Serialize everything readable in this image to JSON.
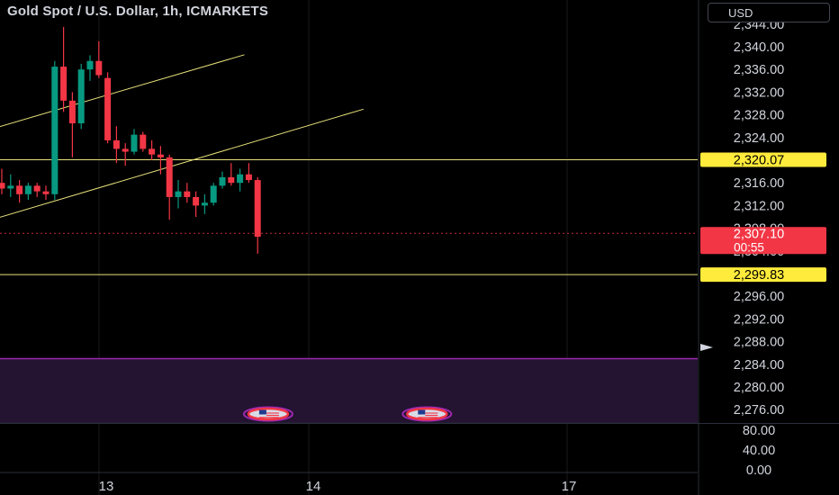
{
  "header": {
    "title": "Gold Spot / U.S. Dollar, 1h, ICMARKETS",
    "currency": "USD"
  },
  "colors": {
    "up": "#089981",
    "down": "#f23645",
    "trendline": "#e6e07a",
    "hline": "#e6e07a",
    "badge_yellow": "#ffeb3b",
    "badge_red": "#f23645",
    "zone": "#241331",
    "zone_border": "#9c27b0"
  },
  "chart_data": {
    "type": "candlestick",
    "price_axis": {
      "ticks": [
        "2,344.00",
        "2,340.00",
        "2,336.00",
        "2,332.00",
        "2,328.00",
        "2,324.00",
        "2,316.00",
        "2,312.00",
        "2,308.00",
        "2,304.00",
        "2,296.00",
        "2,292.00",
        "2,288.00",
        "2,284.00",
        "2,280.00",
        "2,276.00"
      ],
      "range": [
        2274,
        2345
      ]
    },
    "indicator_axis": {
      "ticks": [
        "80.00",
        "40.00",
        "0.00"
      ]
    },
    "time_axis": {
      "labels": [
        "13",
        "14",
        "17"
      ]
    },
    "badges": [
      {
        "label": "2,320.07",
        "value": 2320.07,
        "kind": "hline"
      },
      {
        "label": "2,299.83",
        "value": 2299.83,
        "kind": "hline"
      },
      {
        "label": "2,307.10",
        "sublabel": "00:55",
        "value": 2307.1,
        "kind": "last"
      }
    ],
    "candles": [
      {
        "o": 2316.0,
        "h": 2318.5,
        "l": 2314.0,
        "c": 2315.0
      },
      {
        "o": 2315.0,
        "h": 2317.5,
        "l": 2313.5,
        "c": 2315.5
      },
      {
        "o": 2315.5,
        "h": 2316.5,
        "l": 2312.5,
        "c": 2314.0
      },
      {
        "o": 2314.0,
        "h": 2316.0,
        "l": 2313.0,
        "c": 2315.5
      },
      {
        "o": 2315.5,
        "h": 2316.0,
        "l": 2313.5,
        "c": 2314.5
      },
      {
        "o": 2314.5,
        "h": 2315.5,
        "l": 2313.0,
        "c": 2314.0
      },
      {
        "o": 2314.0,
        "h": 2337.5,
        "l": 2313.0,
        "c": 2336.5
      },
      {
        "o": 2336.5,
        "h": 2343.5,
        "l": 2328.5,
        "c": 2330.5
      },
      {
        "o": 2330.5,
        "h": 2332.0,
        "l": 2320.5,
        "c": 2326.5
      },
      {
        "o": 2326.5,
        "h": 2337.0,
        "l": 2325.5,
        "c": 2336.0
      },
      {
        "o": 2336.0,
        "h": 2338.5,
        "l": 2334.0,
        "c": 2337.5
      },
      {
        "o": 2337.5,
        "h": 2341.0,
        "l": 2334.5,
        "c": 2335.0
      },
      {
        "o": 2334.5,
        "h": 2335.5,
        "l": 2323.0,
        "c": 2323.5
      },
      {
        "o": 2323.5,
        "h": 2326.0,
        "l": 2319.5,
        "c": 2322.0
      },
      {
        "o": 2322.0,
        "h": 2323.0,
        "l": 2319.0,
        "c": 2321.5
      },
      {
        "o": 2321.5,
        "h": 2325.5,
        "l": 2321.0,
        "c": 2324.5
      },
      {
        "o": 2324.5,
        "h": 2325.0,
        "l": 2321.5,
        "c": 2322.0
      },
      {
        "o": 2322.0,
        "h": 2323.5,
        "l": 2320.0,
        "c": 2321.0
      },
      {
        "o": 2321.0,
        "h": 2322.5,
        "l": 2317.5,
        "c": 2320.5
      },
      {
        "o": 2320.5,
        "h": 2321.0,
        "l": 2309.5,
        "c": 2313.5
      },
      {
        "o": 2313.5,
        "h": 2316.5,
        "l": 2311.5,
        "c": 2314.5
      },
      {
        "o": 2314.5,
        "h": 2316.0,
        "l": 2312.5,
        "c": 2313.5
      },
      {
        "o": 2313.5,
        "h": 2314.5,
        "l": 2310.0,
        "c": 2312.0
      },
      {
        "o": 2312.0,
        "h": 2314.0,
        "l": 2310.5,
        "c": 2312.5
      },
      {
        "o": 2312.5,
        "h": 2316.0,
        "l": 2312.0,
        "c": 2315.5
      },
      {
        "o": 2315.5,
        "h": 2318.0,
        "l": 2315.0,
        "c": 2317.0
      },
      {
        "o": 2317.0,
        "h": 2319.5,
        "l": 2315.5,
        "c": 2316.0
      },
      {
        "o": 2316.0,
        "h": 2318.5,
        "l": 2314.5,
        "c": 2317.5
      },
      {
        "o": 2317.5,
        "h": 2319.5,
        "l": 2316.0,
        "c": 2316.5
      },
      {
        "o": 2316.5,
        "h": 2317.0,
        "l": 2303.5,
        "c": 2306.5
      }
    ],
    "trendlines": [
      {
        "start": [
          -0.5,
          2325.8
        ],
        "end": [
          27.5,
          2338.6
        ]
      },
      {
        "start": [
          -0.5,
          2309.8
        ],
        "end": [
          41.0,
          2329.0
        ]
      }
    ],
    "zone": {
      "top": 2285.0
    },
    "event_markers": [
      {
        "icon": "us-flag-icon",
        "candle": 20.5
      },
      {
        "icon": "us-flag-icon",
        "candle": 38.5
      }
    ]
  }
}
